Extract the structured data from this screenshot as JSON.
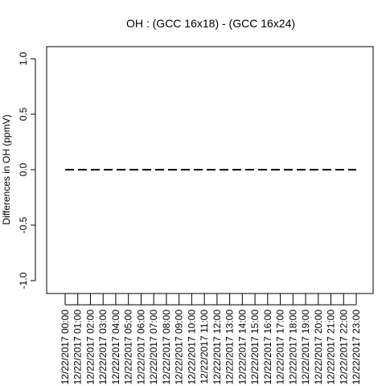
{
  "chart_data": {
    "type": "line",
    "title": "OH : (GCC 16x18) - (GCC 16x24)",
    "xlabel": "",
    "ylabel": "Differences in OH (ppmV)",
    "ylim": [
      -1.08,
      1.08
    ],
    "yticks": [
      -1.0,
      -0.5,
      0.0,
      0.5,
      1.0
    ],
    "ytick_labels": [
      "-1.0",
      "-0.5",
      "0.0",
      "0.5",
      "1.0"
    ],
    "x": [
      "12/22/2017 00:00",
      "12/22/2017 01:00",
      "12/22/2017 02:00",
      "12/22/2017 03:00",
      "12/22/2017 04:00",
      "12/22/2017 05:00",
      "12/22/2017 06:00",
      "12/22/2017 07:00",
      "12/22/2017 08:00",
      "12/22/2017 09:00",
      "12/22/2017 10:00",
      "12/22/2017 11:00",
      "12/22/2017 12:00",
      "12/22/2017 13:00",
      "12/22/2017 14:00",
      "12/22/2017 15:00",
      "12/22/2017 16:00",
      "12/22/2017 17:00",
      "12/22/2017 18:00",
      "12/22/2017 19:00",
      "12/22/2017 20:00",
      "12/22/2017 21:00",
      "12/22/2017 22:00",
      "12/22/2017 23:00"
    ],
    "series": [
      {
        "values": [
          0,
          0,
          0,
          0,
          0,
          0,
          0,
          0,
          0,
          0,
          0,
          0,
          0,
          0,
          0,
          0,
          0,
          0,
          0,
          0,
          0,
          0,
          0,
          0
        ]
      }
    ],
    "grid": false,
    "line_style": "dashed",
    "line_color": "#000000"
  }
}
